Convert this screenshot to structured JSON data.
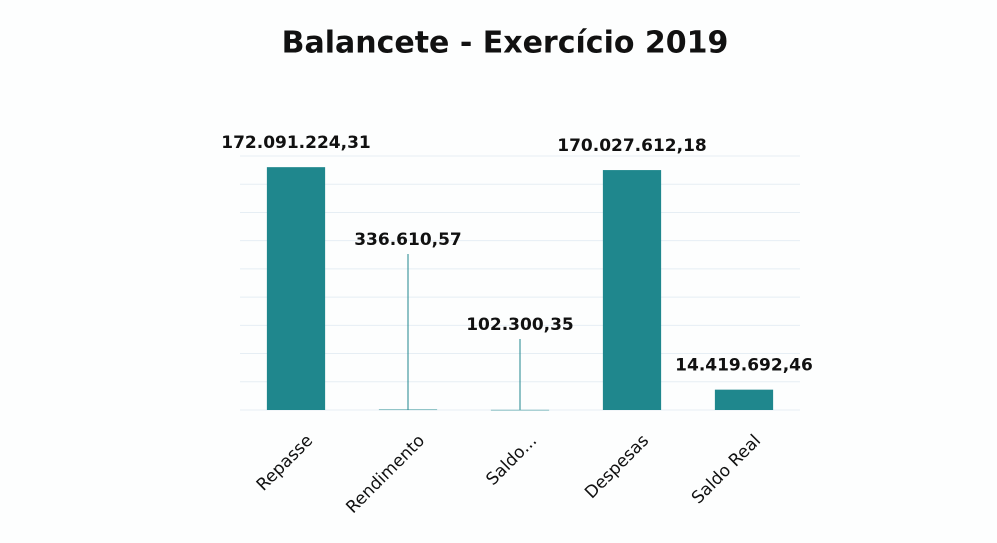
{
  "chart_data": {
    "type": "bar",
    "title": "Balancete - Exercício 2019",
    "categories": [
      "Repasse",
      "Rendimento",
      "Saldo...",
      "Despesas",
      "Saldo Real"
    ],
    "values": [
      172091224.31,
      336610.57,
      102300.35,
      170027612.18,
      14419692.46
    ],
    "value_labels": [
      "172.091.224,31",
      "336.610,57",
      "102.300,35",
      "170.027.612,18",
      "14.419.692,46"
    ],
    "color": "#1f878d",
    "ylim": [
      0,
      180000000
    ],
    "yticks": [
      0,
      20000000,
      40000000,
      60000000,
      80000000,
      100000000,
      120000000,
      140000000,
      160000000,
      180000000
    ],
    "grid": true
  }
}
